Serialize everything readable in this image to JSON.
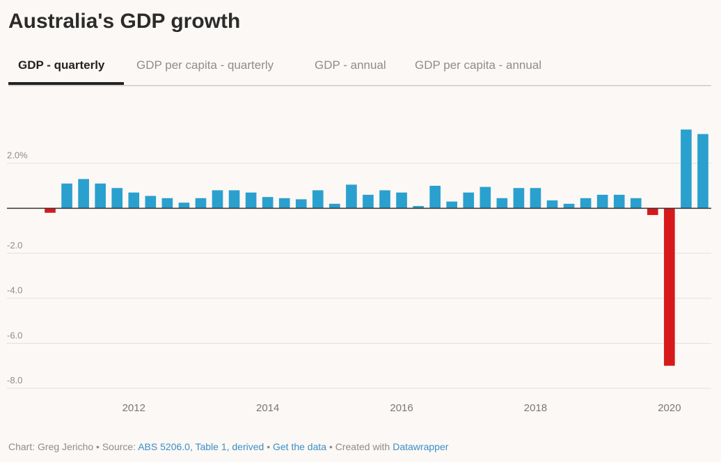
{
  "title": "Australia's GDP growth",
  "tabs": [
    {
      "label": "GDP - quarterly",
      "active": true
    },
    {
      "label": "GDP per capita - quarterly",
      "active": false
    },
    {
      "label": "GDP - annual",
      "active": false
    },
    {
      "label": "GDP per capita - annual",
      "active": false
    }
  ],
  "footer": {
    "prefix": "Chart: Greg Jericho • Source: ",
    "source_link": "ABS 5206.0, Table 1, derived",
    "sep1": " • ",
    "data_link": "Get the data",
    "sep2": " • Created with ",
    "tool_link": "Datawrapper"
  },
  "colors": {
    "positive": "#2aa0cf",
    "negative": "#d7191c",
    "grid": "#e2e2e2",
    "zero": "#333333"
  },
  "chart_data": {
    "type": "bar",
    "x_unit": "quarter",
    "x_start": "2010-Q4",
    "values": [
      -0.2,
      1.1,
      1.3,
      1.1,
      0.9,
      0.7,
      0.55,
      0.45,
      0.25,
      0.45,
      0.8,
      0.8,
      0.7,
      0.5,
      0.45,
      0.4,
      0.8,
      0.2,
      1.05,
      0.6,
      0.8,
      0.7,
      0.1,
      1.0,
      0.3,
      0.7,
      0.95,
      0.45,
      0.9,
      0.9,
      0.35,
      0.2,
      0.45,
      0.6,
      0.6,
      0.45,
      -0.3,
      -7.0,
      3.5,
      3.3
    ],
    "ylim": [
      -8,
      4
    ],
    "yticks": [
      2.0,
      0,
      -2.0,
      -4.0,
      -6.0,
      -8.0
    ],
    "ytick_labels": [
      "2.0%",
      "",
      "-2.0",
      "-4.0",
      "-6.0",
      "-8.0"
    ],
    "xticks": [
      {
        "label": "2012",
        "quarter_index": 5
      },
      {
        "label": "2014",
        "quarter_index": 13
      },
      {
        "label": "2016",
        "quarter_index": 21
      },
      {
        "label": "2018",
        "quarter_index": 29
      },
      {
        "label": "2020",
        "quarter_index": 37
      }
    ],
    "xlabel": "",
    "ylabel": "",
    "grid": true
  }
}
